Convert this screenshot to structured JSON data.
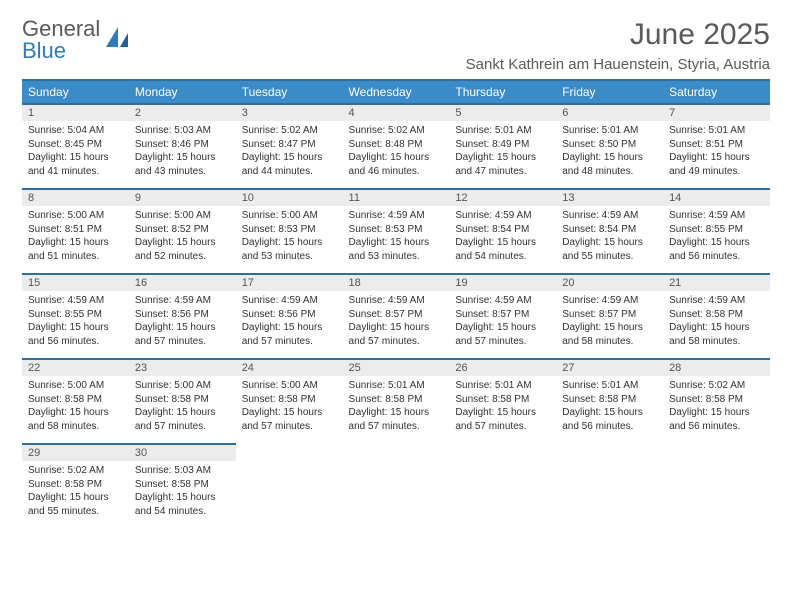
{
  "logo": {
    "text1": "General",
    "text2": "Blue"
  },
  "title": "June 2025",
  "location": "Sankt Kathrein am Hauenstein, Styria, Austria",
  "colors": {
    "header_bg": "#3b8bc8",
    "header_border": "#2f6fa0",
    "daynum_bg": "#ececec",
    "text": "#333333",
    "muted": "#5a5a5a",
    "logo_blue": "#2f7bbf"
  },
  "dow": [
    "Sunday",
    "Monday",
    "Tuesday",
    "Wednesday",
    "Thursday",
    "Friday",
    "Saturday"
  ],
  "weeks": [
    {
      "nums": [
        "1",
        "2",
        "3",
        "4",
        "5",
        "6",
        "7"
      ],
      "cells": [
        {
          "sr": "5:04 AM",
          "ss": "8:45 PM",
          "dl": "15 hours and 41 minutes."
        },
        {
          "sr": "5:03 AM",
          "ss": "8:46 PM",
          "dl": "15 hours and 43 minutes."
        },
        {
          "sr": "5:02 AM",
          "ss": "8:47 PM",
          "dl": "15 hours and 44 minutes."
        },
        {
          "sr": "5:02 AM",
          "ss": "8:48 PM",
          "dl": "15 hours and 46 minutes."
        },
        {
          "sr": "5:01 AM",
          "ss": "8:49 PM",
          "dl": "15 hours and 47 minutes."
        },
        {
          "sr": "5:01 AM",
          "ss": "8:50 PM",
          "dl": "15 hours and 48 minutes."
        },
        {
          "sr": "5:01 AM",
          "ss": "8:51 PM",
          "dl": "15 hours and 49 minutes."
        }
      ]
    },
    {
      "nums": [
        "8",
        "9",
        "10",
        "11",
        "12",
        "13",
        "14"
      ],
      "cells": [
        {
          "sr": "5:00 AM",
          "ss": "8:51 PM",
          "dl": "15 hours and 51 minutes."
        },
        {
          "sr": "5:00 AM",
          "ss": "8:52 PM",
          "dl": "15 hours and 52 minutes."
        },
        {
          "sr": "5:00 AM",
          "ss": "8:53 PM",
          "dl": "15 hours and 53 minutes."
        },
        {
          "sr": "4:59 AM",
          "ss": "8:53 PM",
          "dl": "15 hours and 53 minutes."
        },
        {
          "sr": "4:59 AM",
          "ss": "8:54 PM",
          "dl": "15 hours and 54 minutes."
        },
        {
          "sr": "4:59 AM",
          "ss": "8:54 PM",
          "dl": "15 hours and 55 minutes."
        },
        {
          "sr": "4:59 AM",
          "ss": "8:55 PM",
          "dl": "15 hours and 56 minutes."
        }
      ]
    },
    {
      "nums": [
        "15",
        "16",
        "17",
        "18",
        "19",
        "20",
        "21"
      ],
      "cells": [
        {
          "sr": "4:59 AM",
          "ss": "8:55 PM",
          "dl": "15 hours and 56 minutes."
        },
        {
          "sr": "4:59 AM",
          "ss": "8:56 PM",
          "dl": "15 hours and 57 minutes."
        },
        {
          "sr": "4:59 AM",
          "ss": "8:56 PM",
          "dl": "15 hours and 57 minutes."
        },
        {
          "sr": "4:59 AM",
          "ss": "8:57 PM",
          "dl": "15 hours and 57 minutes."
        },
        {
          "sr": "4:59 AM",
          "ss": "8:57 PM",
          "dl": "15 hours and 57 minutes."
        },
        {
          "sr": "4:59 AM",
          "ss": "8:57 PM",
          "dl": "15 hours and 58 minutes."
        },
        {
          "sr": "4:59 AM",
          "ss": "8:58 PM",
          "dl": "15 hours and 58 minutes."
        }
      ]
    },
    {
      "nums": [
        "22",
        "23",
        "24",
        "25",
        "26",
        "27",
        "28"
      ],
      "cells": [
        {
          "sr": "5:00 AM",
          "ss": "8:58 PM",
          "dl": "15 hours and 58 minutes."
        },
        {
          "sr": "5:00 AM",
          "ss": "8:58 PM",
          "dl": "15 hours and 57 minutes."
        },
        {
          "sr": "5:00 AM",
          "ss": "8:58 PM",
          "dl": "15 hours and 57 minutes."
        },
        {
          "sr": "5:01 AM",
          "ss": "8:58 PM",
          "dl": "15 hours and 57 minutes."
        },
        {
          "sr": "5:01 AM",
          "ss": "8:58 PM",
          "dl": "15 hours and 57 minutes."
        },
        {
          "sr": "5:01 AM",
          "ss": "8:58 PM",
          "dl": "15 hours and 56 minutes."
        },
        {
          "sr": "5:02 AM",
          "ss": "8:58 PM",
          "dl": "15 hours and 56 minutes."
        }
      ]
    },
    {
      "nums": [
        "29",
        "30",
        "",
        "",
        "",
        "",
        ""
      ],
      "cells": [
        {
          "sr": "5:02 AM",
          "ss": "8:58 PM",
          "dl": "15 hours and 55 minutes."
        },
        {
          "sr": "5:03 AM",
          "ss": "8:58 PM",
          "dl": "15 hours and 54 minutes."
        },
        null,
        null,
        null,
        null,
        null
      ]
    }
  ],
  "labels": {
    "sunrise": "Sunrise: ",
    "sunset": "Sunset: ",
    "daylight": "Daylight: "
  }
}
